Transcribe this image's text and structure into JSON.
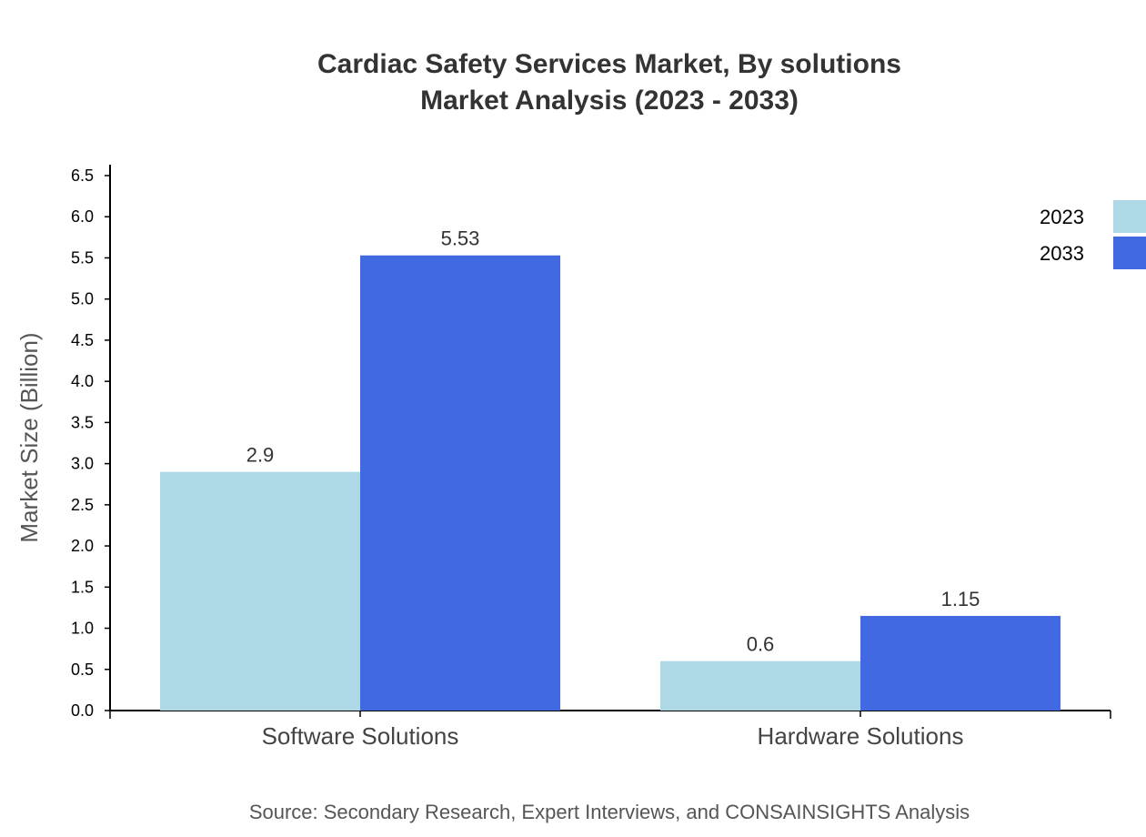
{
  "chart_data": {
    "type": "bar",
    "title": [
      "Cardiac Safety Services Market, By solutions",
      "Market Analysis (2023 - 2033)"
    ],
    "xlabel": "",
    "ylabel": "Market Size (Billion)",
    "ylim": [
      0,
      6.5
    ],
    "yticks": [
      "0.0",
      "0.5",
      "1.0",
      "1.5",
      "2.0",
      "2.5",
      "3.0",
      "3.5",
      "4.0",
      "4.5",
      "5.0",
      "5.5",
      "6.0",
      "6.5"
    ],
    "categories": [
      "Software Solutions",
      "Hardware Solutions"
    ],
    "series": [
      {
        "name": "2023",
        "values": [
          2.9,
          0.6
        ],
        "labels": [
          "2.9",
          "0.6"
        ],
        "color": "#add8e6"
      },
      {
        "name": "2033",
        "values": [
          5.53,
          1.15
        ],
        "labels": [
          "5.53",
          "1.15"
        ],
        "color": "#4169e1"
      }
    ],
    "grid": false,
    "legend": "top-right",
    "source": "Source: Secondary Research, Expert Interviews, and CONSAINSIGHTS Analysis"
  }
}
